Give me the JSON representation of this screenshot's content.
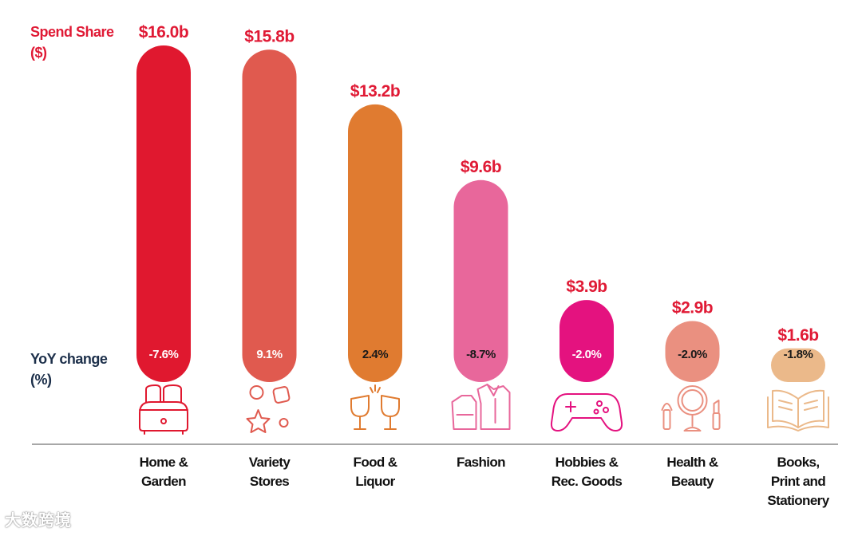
{
  "chart_data": {
    "type": "bar",
    "value_label_lines": [
      "Spend Share",
      "($)"
    ],
    "yoy_label_lines": [
      "YoY change",
      "(%)"
    ],
    "categories": [
      {
        "label_lines": [
          "Home &",
          "Garden"
        ],
        "value": 16.0,
        "value_label": "$16.0b",
        "yoy": -7.6,
        "yoy_label": "-7.6%",
        "color": "#e0182f",
        "icon": "toaster-icon"
      },
      {
        "label_lines": [
          "Variety",
          "Stores"
        ],
        "value": 15.8,
        "value_label": "$15.8b",
        "yoy": 9.1,
        "yoy_label": "9.1%",
        "color": "#e05a4f",
        "icon": "shapes-icon"
      },
      {
        "label_lines": [
          "Food &",
          "Liquor"
        ],
        "value": 13.2,
        "value_label": "$13.2b",
        "yoy": 2.4,
        "yoy_label": "2.4%",
        "color": "#e07b30",
        "icon": "wine-glasses-icon"
      },
      {
        "label_lines": [
          "Fashion"
        ],
        "value": 9.6,
        "value_label": "$9.6b",
        "yoy": -8.7,
        "yoy_label": "-8.7%",
        "color": "#e8679b",
        "icon": "clothing-icon"
      },
      {
        "label_lines": [
          "Hobbies &",
          "Rec. Goods"
        ],
        "value": 3.9,
        "value_label": "$3.9b",
        "yoy": -2.0,
        "yoy_label": "-2.0%",
        "color": "#e4127f",
        "icon": "gamepad-icon"
      },
      {
        "label_lines": [
          "Health &",
          "Beauty"
        ],
        "value": 2.9,
        "value_label": "$2.9b",
        "yoy": -2.0,
        "yoy_label": "-2.0%",
        "color": "#ea9080",
        "icon": "mirror-icon"
      },
      {
        "label_lines": [
          "Books,",
          "Print and",
          "Stationery"
        ],
        "value": 1.6,
        "value_label": "$1.6b",
        "yoy": -1.8,
        "yoy_label": "-1.8%",
        "color": "#ebb98a",
        "icon": "book-icon"
      }
    ],
    "yoy_text_colors": {
      "light": "#ffffff",
      "dark": "#1a1a1a"
    },
    "grid": false,
    "legend": "none"
  },
  "watermark": "大数跨境"
}
